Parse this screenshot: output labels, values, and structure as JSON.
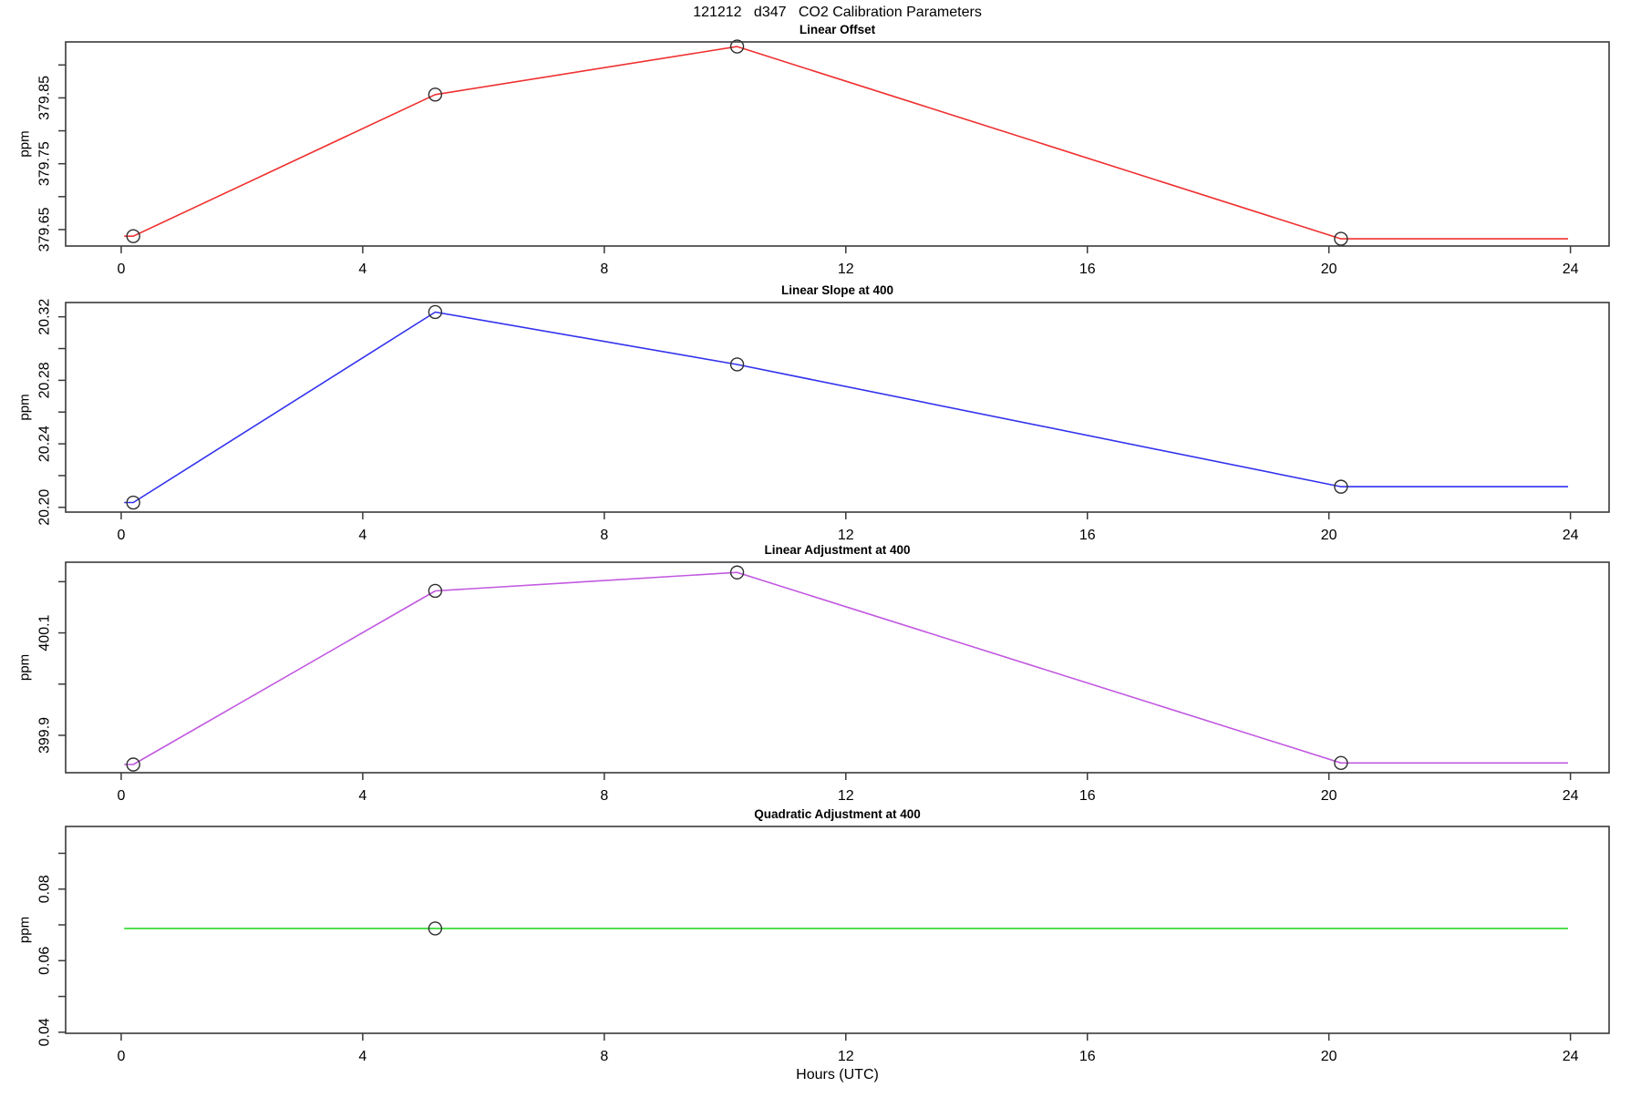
{
  "page": {
    "title": "121212   d347   CO2 Calibration Parameters",
    "xlabel": "Hours (UTC)",
    "background": "#ffffff",
    "axis_color": "#3a3a3a",
    "marker_color": "#2e2e2e",
    "marker": "open-circle"
  },
  "chart_data": [
    {
      "type": "line",
      "title": "Linear Offset",
      "ylabel": "ppm",
      "series_color": "#f03030",
      "xlim": [
        -0.92,
        24.64
      ],
      "ylim": [
        379.625,
        379.935
      ],
      "xticks": [
        0,
        4,
        8,
        12,
        16,
        20,
        24
      ],
      "xtick_labels": [
        "0",
        "4",
        "8",
        "12",
        "16",
        "20",
        "24"
      ],
      "yticks": [
        379.65,
        379.7,
        379.75,
        379.8,
        379.85,
        379.9
      ],
      "ytick_labels": [
        "379.65",
        "",
        "379.75",
        "",
        "379.85",
        ""
      ],
      "calibration_points": {
        "x": [
          0.2,
          5.2,
          10.2,
          20.2
        ],
        "y": [
          379.64,
          379.855,
          379.928,
          379.636
        ]
      },
      "line_path": {
        "x": [
          0.05,
          0.2,
          5.2,
          10.2,
          20.2,
          23.96
        ],
        "y": [
          379.64,
          379.64,
          379.855,
          379.928,
          379.636,
          379.636
        ]
      }
    },
    {
      "type": "line",
      "title": "Linear Slope at 400",
      "ylabel": "ppm",
      "series_color": "#3232ee",
      "xlim": [
        -0.92,
        24.64
      ],
      "ylim": [
        20.197,
        20.329
      ],
      "xticks": [
        0,
        4,
        8,
        12,
        16,
        20,
        24
      ],
      "xtick_labels": [
        "0",
        "4",
        "8",
        "12",
        "16",
        "20",
        "24"
      ],
      "yticks": [
        20.2,
        20.22,
        20.24,
        20.26,
        20.28,
        20.3,
        20.32
      ],
      "ytick_labels": [
        "20.20",
        "",
        "20.24",
        "",
        "20.28",
        "",
        "20.32"
      ],
      "calibration_points": {
        "x": [
          0.2,
          5.2,
          10.2,
          20.2
        ],
        "y": [
          20.203,
          20.323,
          20.29,
          20.213
        ]
      },
      "line_path": {
        "x": [
          0.05,
          0.2,
          5.2,
          10.2,
          20.2,
          23.96
        ],
        "y": [
          20.203,
          20.203,
          20.323,
          20.29,
          20.213,
          20.213
        ]
      }
    },
    {
      "type": "line",
      "title": "Linear Adjustment at 400",
      "ylabel": "ppm",
      "series_color": "#c25ae0",
      "xlim": [
        -0.92,
        24.64
      ],
      "ylim": [
        399.827,
        400.238
      ],
      "xticks": [
        0,
        4,
        8,
        12,
        16,
        20,
        24
      ],
      "xtick_labels": [
        "0",
        "4",
        "8",
        "12",
        "16",
        "20",
        "24"
      ],
      "yticks": [
        399.9,
        400.0,
        400.1,
        400.2
      ],
      "ytick_labels": [
        "399.9",
        "",
        "400.1",
        ""
      ],
      "calibration_points": {
        "x": [
          0.2,
          5.2,
          10.2,
          20.2
        ],
        "y": [
          399.843,
          400.182,
          400.218,
          399.846
        ]
      },
      "line_path": {
        "x": [
          0.05,
          0.2,
          5.2,
          10.2,
          20.2,
          23.96
        ],
        "y": [
          399.843,
          399.843,
          400.182,
          400.218,
          399.846,
          399.846
        ]
      }
    },
    {
      "type": "line",
      "title": "Quadratic Adjustment at 400",
      "ylabel": "ppm",
      "series_color": "#28d828",
      "xlim": [
        -0.92,
        24.64
      ],
      "ylim": [
        0.0397,
        0.0975
      ],
      "xticks": [
        0,
        4,
        8,
        12,
        16,
        20,
        24
      ],
      "xtick_labels": [
        "0",
        "4",
        "8",
        "12",
        "16",
        "20",
        "24"
      ],
      "yticks": [
        0.04,
        0.05,
        0.06,
        0.07,
        0.08,
        0.09
      ],
      "ytick_labels": [
        "0.04",
        "",
        "0.06",
        "",
        "0.08",
        ""
      ],
      "calibration_points": {
        "x": [
          5.2
        ],
        "y": [
          0.069
        ]
      },
      "line_path": {
        "x": [
          0.05,
          23.96
        ],
        "y": [
          0.069,
          0.069
        ]
      }
    }
  ]
}
